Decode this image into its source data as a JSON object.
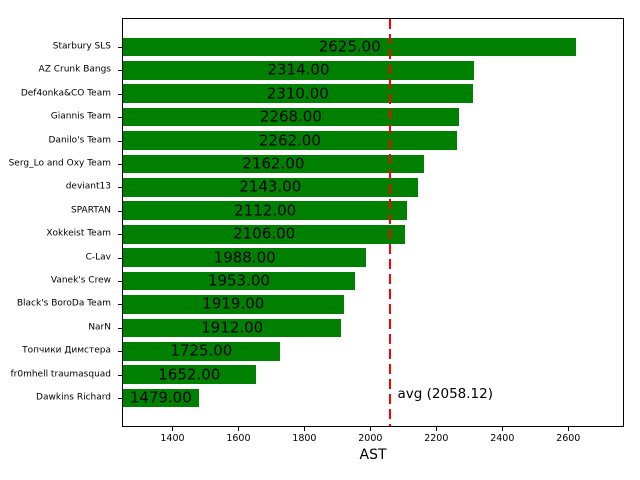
{
  "chart_data": {
    "type": "bar",
    "orientation": "horizontal",
    "title": "",
    "xlabel": "AST",
    "ylabel": "",
    "categories": [
      "Starbury SLS",
      "AZ Crunk Bangs",
      "Def4onka&CO Team",
      "Giannis Team",
      "Danilo's Team",
      "Serg_Lo and Oxy Team",
      "deviant13",
      "SPARTAN",
      "Xokkeist Team",
      "C-Lav",
      "Vanek's Crew",
      "Black's BoroDa Team",
      "NarN",
      "Топчики Димстера",
      "fr0mhell traumasquad",
      "Dawkins Richard"
    ],
    "values": [
      2625,
      2314,
      2310,
      2268,
      2262,
      2162,
      2143,
      2112,
      2106,
      1988,
      1953,
      1919,
      1912,
      1725,
      1652,
      1479
    ],
    "value_labels": [
      "2625.00",
      "2314.00",
      "2310.00",
      "2268.00",
      "2262.00",
      "2162.00",
      "2143.00",
      "2112.00",
      "2106.00",
      "1988.00",
      "1953.00",
      "1919.00",
      "1912.00",
      "1725.00",
      "1652.00",
      "1479.00"
    ],
    "bar_color": "#008000",
    "value_label_color": "#000000",
    "xlim": [
      1250,
      2766
    ],
    "ylim": [
      -1.19,
      16.19
    ],
    "bar_thickness_fraction": 0.8,
    "xticks": [
      "1400",
      "1600",
      "1800",
      "2000",
      "2200",
      "2400",
      "2600"
    ],
    "xtick_values": [
      1400,
      1600,
      1800,
      2000,
      2200,
      2400,
      2600
    ],
    "grid": false,
    "avg_line": {
      "value": 2058.12,
      "label": "avg (2058.12)",
      "color": "#ff0000",
      "style": "dashed"
    }
  }
}
